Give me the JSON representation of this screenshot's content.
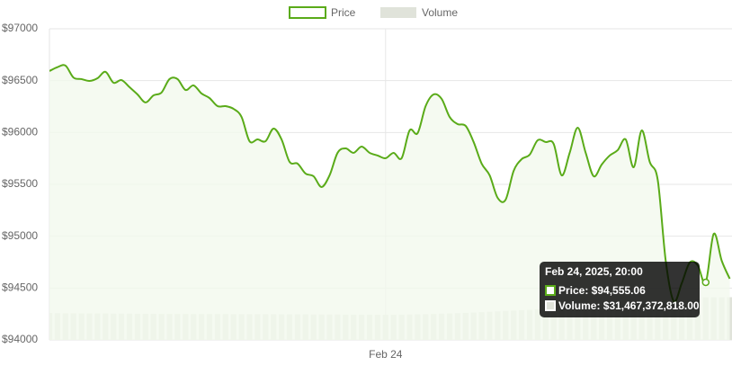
{
  "chart_data": {
    "type": "line",
    "categories": [
      null,
      null,
      null,
      null,
      null,
      null,
      null,
      null,
      null,
      null,
      null,
      null,
      null,
      null,
      null,
      null,
      null,
      null,
      null,
      null,
      null,
      null,
      null,
      null,
      null,
      null,
      null,
      null,
      null,
      null,
      null,
      null,
      null,
      null,
      null,
      null,
      null,
      null,
      null,
      null,
      null,
      null,
      "Feb 24",
      null,
      null,
      null,
      null,
      null,
      null,
      null,
      null,
      null,
      null,
      null,
      null,
      null,
      null,
      null,
      null,
      null,
      null,
      null,
      null,
      null,
      null,
      null,
      null,
      null,
      null,
      null,
      null,
      null,
      null,
      null,
      null,
      null,
      null,
      null,
      null,
      null,
      null,
      null,
      null,
      null,
      null,
      null
    ],
    "series": [
      {
        "name": "Price",
        "color": "#5aab19",
        "values": [
          96593,
          96630,
          96645,
          96530,
          96515,
          96497,
          96523,
          96585,
          96480,
          96505,
          96437,
          96367,
          96290,
          96358,
          96385,
          96515,
          96515,
          96410,
          96454,
          96376,
          96332,
          96254,
          96254,
          96228,
          96150,
          95916,
          95933,
          95916,
          96038,
          95933,
          95717,
          95700,
          95604,
          95578,
          95474,
          95587,
          95804,
          95847,
          95804,
          95864,
          95804,
          95778,
          95752,
          95804,
          95752,
          96020,
          95994,
          96254,
          96367,
          96324,
          96150,
          96081,
          96064,
          95908,
          95700,
          95587,
          95370,
          95353,
          95630,
          95743,
          95786,
          95925,
          95908,
          95890,
          95587,
          95804,
          96046,
          95804,
          95578,
          95691,
          95778,
          95830,
          95933,
          95665,
          96020,
          95717,
          95544,
          94763,
          94373,
          94546,
          94746,
          94720,
          94555.06,
          95023,
          94763,
          94590
        ]
      },
      {
        "name": "Volume",
        "color": "#e0e3da",
        "axis": "y2",
        "values": [
          19900000000,
          19800000000,
          19700000000,
          19700000000,
          19600000000,
          19600000000,
          19500000000,
          19500000000,
          19400000000,
          19400000000,
          19400000000,
          19300000000,
          19300000000,
          19300000000,
          19200000000,
          19200000000,
          19200000000,
          19200000000,
          19100000000,
          19100000000,
          19100000000,
          19100000000,
          19100000000,
          19000000000,
          19000000000,
          19000000000,
          19000000000,
          19000000000,
          19000000000,
          18900000000,
          18900000000,
          18900000000,
          18900000000,
          18800000000,
          18800000000,
          18800000000,
          18800000000,
          18700000000,
          18700000000,
          18700000000,
          18700000000,
          18600000000,
          18600000000,
          18600000000,
          18700000000,
          18800000000,
          18900000000,
          19000000000,
          19200000000,
          19400000000,
          19600000000,
          19800000000,
          20000000000,
          20200000000,
          20500000000,
          20800000000,
          21100000000,
          21400000000,
          21700000000,
          22000000000,
          22300000000,
          22600000000,
          22900000000,
          23200000000,
          23500000000,
          23800000000,
          24100000000,
          24400000000,
          24700000000,
          25000000000,
          25400000000,
          25800000000,
          26200000000,
          26600000000,
          27000000000,
          27400000000,
          27800000000,
          28200000000,
          28700000000,
          29200000000,
          29700000000,
          30300000000,
          31467372818,
          31500000000,
          31500000000,
          31600000000
        ]
      }
    ],
    "ylim": [
      94000,
      97000
    ],
    "yticks": [
      {
        "value": 94000,
        "label": "$94000"
      },
      {
        "value": 94500,
        "label": "$94500"
      },
      {
        "value": 95000,
        "label": "$95000"
      },
      {
        "value": 95500,
        "label": "$95500"
      },
      {
        "value": 96000,
        "label": "$96000"
      },
      {
        "value": 96500,
        "label": "$96500"
      },
      {
        "value": 97000,
        "label": "$97000"
      }
    ],
    "y2lim": [
      0,
      230000000000
    ],
    "grid": true,
    "legend": "top",
    "area_color": "#f3f9ee",
    "tooltip": {
      "title": "Feb 24, 2025, 20:00",
      "items": [
        "Price: $94,555.06",
        "Volume: $31,467,372,818.00"
      ]
    }
  }
}
